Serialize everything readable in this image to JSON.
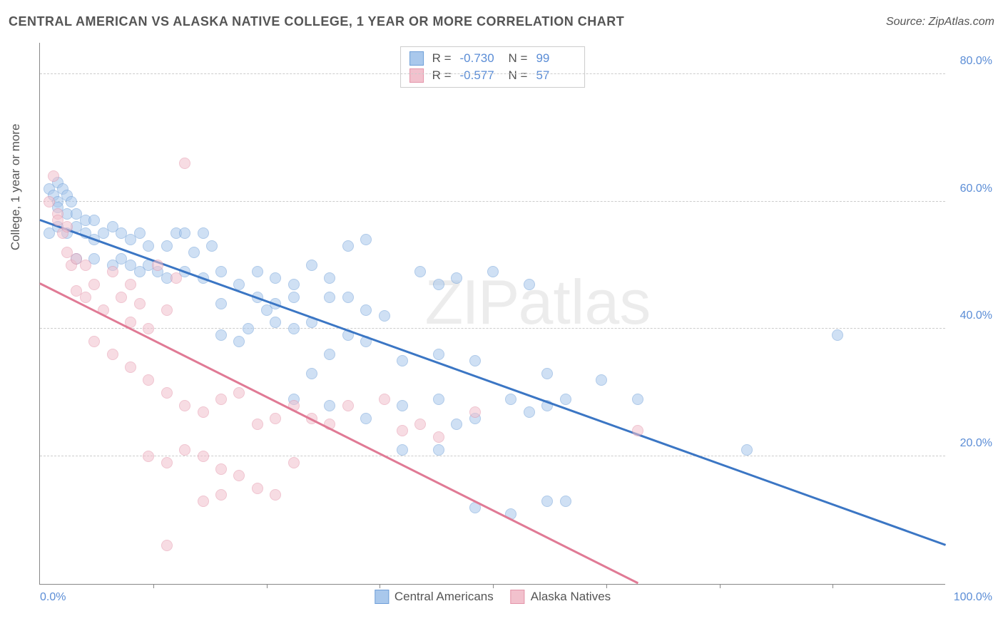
{
  "header": {
    "title": "CENTRAL AMERICAN VS ALASKA NATIVE COLLEGE, 1 YEAR OR MORE CORRELATION CHART",
    "source": "Source: ZipAtlas.com"
  },
  "watermark": {
    "part1": "ZIP",
    "part2": "atlas"
  },
  "chart": {
    "type": "scatter",
    "ylabel": "College, 1 year or more",
    "xlim": [
      0,
      100
    ],
    "ylim": [
      0,
      85
    ],
    "xticks": [
      0,
      100
    ],
    "xtick_labels": [
      "0.0%",
      "100.0%"
    ],
    "xminor_ticks": [
      12.5,
      25,
      37.5,
      50,
      62.5,
      75,
      87.5
    ],
    "yticks": [
      20,
      40,
      60,
      80
    ],
    "ytick_labels": [
      "20.0%",
      "40.0%",
      "60.0%",
      "80.0%"
    ],
    "background_color": "#ffffff",
    "grid_color": "#cccccc",
    "axis_color": "#888888",
    "tick_label_color": "#5b8dd6",
    "marker_radius": 8,
    "marker_opacity": 0.55,
    "series": [
      {
        "name": "Central Americans",
        "fill": "#a9c8ec",
        "stroke": "#6f9fd8",
        "line_color": "#3b76c4",
        "r_value": "-0.730",
        "n_value": "99",
        "trend": {
          "x1": 0,
          "y1": 57,
          "x2": 100,
          "y2": 6
        },
        "points": [
          [
            1,
            62
          ],
          [
            1.5,
            61
          ],
          [
            2,
            63
          ],
          [
            2,
            60
          ],
          [
            2,
            59
          ],
          [
            2.5,
            62
          ],
          [
            3,
            58
          ],
          [
            3,
            61
          ],
          [
            3.5,
            60
          ],
          [
            1,
            55
          ],
          [
            2,
            56
          ],
          [
            3,
            55
          ],
          [
            4,
            58
          ],
          [
            4,
            56
          ],
          [
            5,
            55
          ],
          [
            5,
            57
          ],
          [
            6,
            57
          ],
          [
            6,
            54
          ],
          [
            7,
            55
          ],
          [
            8,
            56
          ],
          [
            9,
            55
          ],
          [
            10,
            54
          ],
          [
            11,
            55
          ],
          [
            12,
            53
          ],
          [
            14,
            53
          ],
          [
            15,
            55
          ],
          [
            16,
            55
          ],
          [
            17,
            52
          ],
          [
            18,
            55
          ],
          [
            19,
            53
          ],
          [
            4,
            51
          ],
          [
            6,
            51
          ],
          [
            8,
            50
          ],
          [
            9,
            51
          ],
          [
            10,
            50
          ],
          [
            11,
            49
          ],
          [
            12,
            50
          ],
          [
            13,
            49
          ],
          [
            14,
            48
          ],
          [
            16,
            49
          ],
          [
            18,
            48
          ],
          [
            20,
            49
          ],
          [
            22,
            47
          ],
          [
            24,
            49
          ],
          [
            26,
            48
          ],
          [
            28,
            45
          ],
          [
            30,
            50
          ],
          [
            32,
            48
          ],
          [
            34,
            53
          ],
          [
            36,
            54
          ],
          [
            34,
            45
          ],
          [
            30,
            41
          ],
          [
            28,
            40
          ],
          [
            26,
            41
          ],
          [
            25,
            43
          ],
          [
            23,
            40
          ],
          [
            22,
            38
          ],
          [
            20,
            39
          ],
          [
            20,
            44
          ],
          [
            24,
            45
          ],
          [
            26,
            44
          ],
          [
            28,
            47
          ],
          [
            32,
            45
          ],
          [
            36,
            43
          ],
          [
            38,
            42
          ],
          [
            42,
            49
          ],
          [
            44,
            47
          ],
          [
            46,
            48
          ],
          [
            48,
            35
          ],
          [
            44,
            36
          ],
          [
            40,
            35
          ],
          [
            36,
            38
          ],
          [
            34,
            39
          ],
          [
            32,
            36
          ],
          [
            30,
            33
          ],
          [
            28,
            29
          ],
          [
            32,
            28
          ],
          [
            36,
            26
          ],
          [
            40,
            28
          ],
          [
            44,
            29
          ],
          [
            46,
            25
          ],
          [
            48,
            26
          ],
          [
            40,
            21
          ],
          [
            44,
            21
          ],
          [
            52,
            29
          ],
          [
            54,
            27
          ],
          [
            56,
            28
          ],
          [
            56,
            33
          ],
          [
            58,
            29
          ],
          [
            62,
            32
          ],
          [
            50,
            49
          ],
          [
            54,
            47
          ],
          [
            48,
            12
          ],
          [
            52,
            11
          ],
          [
            56,
            13
          ],
          [
            58,
            13
          ],
          [
            66,
            29
          ],
          [
            78,
            21
          ],
          [
            88,
            39
          ]
        ]
      },
      {
        "name": "Alaska Natives",
        "fill": "#f2c1cd",
        "stroke": "#e495aa",
        "line_color": "#e07a95",
        "r_value": "-0.577",
        "n_value": "57",
        "trend": {
          "x1": 0,
          "y1": 47,
          "x2": 66,
          "y2": 0
        },
        "points": [
          [
            1,
            60
          ],
          [
            1.5,
            64
          ],
          [
            2,
            58
          ],
          [
            2,
            57
          ],
          [
            2.5,
            55
          ],
          [
            3,
            56
          ],
          [
            3,
            52
          ],
          [
            3.5,
            50
          ],
          [
            4,
            51
          ],
          [
            4,
            46
          ],
          [
            5,
            45
          ],
          [
            5,
            50
          ],
          [
            6,
            47
          ],
          [
            7,
            43
          ],
          [
            8,
            49
          ],
          [
            9,
            45
          ],
          [
            10,
            41
          ],
          [
            10,
            47
          ],
          [
            11,
            44
          ],
          [
            12,
            40
          ],
          [
            13,
            50
          ],
          [
            14,
            43
          ],
          [
            15,
            48
          ],
          [
            16,
            66
          ],
          [
            6,
            38
          ],
          [
            8,
            36
          ],
          [
            10,
            34
          ],
          [
            12,
            32
          ],
          [
            14,
            30
          ],
          [
            16,
            28
          ],
          [
            18,
            27
          ],
          [
            20,
            29
          ],
          [
            22,
            30
          ],
          [
            24,
            25
          ],
          [
            26,
            26
          ],
          [
            28,
            28
          ],
          [
            30,
            26
          ],
          [
            12,
            20
          ],
          [
            14,
            19
          ],
          [
            16,
            21
          ],
          [
            18,
            20
          ],
          [
            20,
            18
          ],
          [
            22,
            17
          ],
          [
            24,
            15
          ],
          [
            26,
            14
          ],
          [
            14,
            6
          ],
          [
            18,
            13
          ],
          [
            20,
            14
          ],
          [
            28,
            19
          ],
          [
            32,
            25
          ],
          [
            34,
            28
          ],
          [
            38,
            29
          ],
          [
            40,
            24
          ],
          [
            42,
            25
          ],
          [
            44,
            23
          ],
          [
            48,
            27
          ],
          [
            66,
            24
          ]
        ]
      }
    ],
    "legend_top": {
      "r_label": "R =",
      "n_label": "N ="
    },
    "legend_bottom": [
      {
        "label": "Central Americans",
        "fill": "#a9c8ec",
        "stroke": "#6f9fd8"
      },
      {
        "label": "Alaska Natives",
        "fill": "#f2c1cd",
        "stroke": "#e495aa"
      }
    ]
  }
}
